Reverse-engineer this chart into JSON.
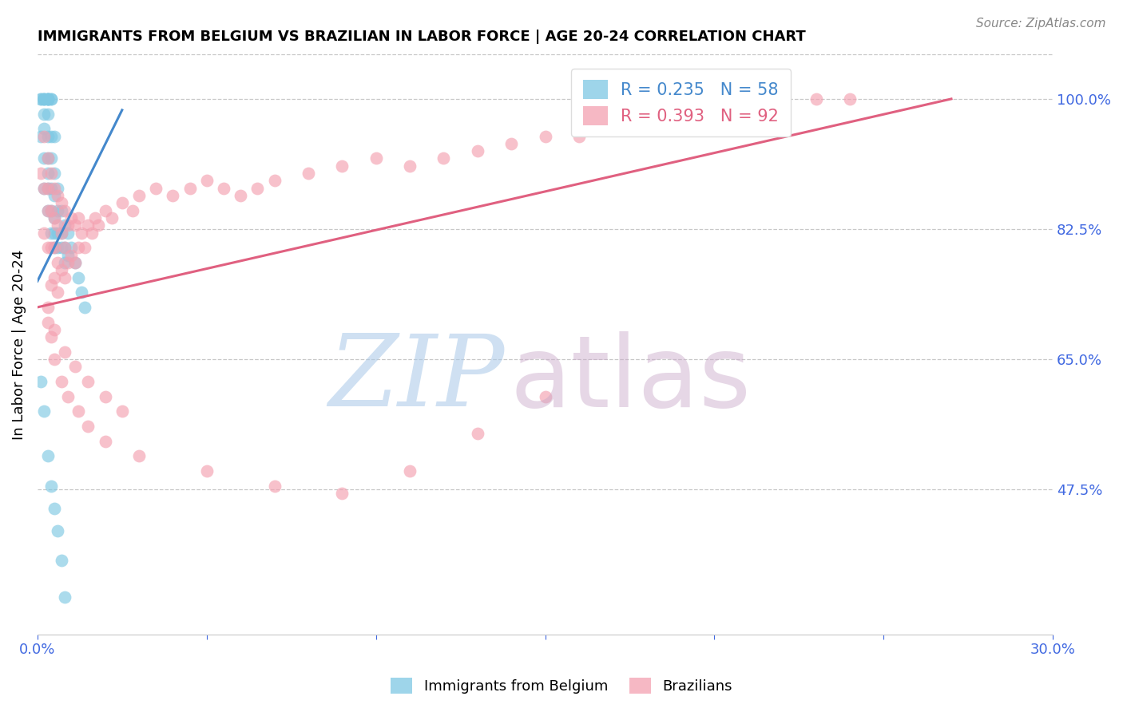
{
  "title": "IMMIGRANTS FROM BELGIUM VS BRAZILIAN IN LABOR FORCE | AGE 20-24 CORRELATION CHART",
  "source": "Source: ZipAtlas.com",
  "ylabel": "In Labor Force | Age 20-24",
  "xlim": [
    0.0,
    0.3
  ],
  "ylim": [
    0.28,
    1.06
  ],
  "xticks": [
    0.0,
    0.05,
    0.1,
    0.15,
    0.2,
    0.25,
    0.3
  ],
  "xticklabels": [
    "0.0%",
    "",
    "",
    "",
    "",
    "",
    "30.0%"
  ],
  "yticks_right": [
    0.475,
    0.65,
    0.825,
    1.0
  ],
  "ytick_labels_right": [
    "47.5%",
    "65.0%",
    "82.5%",
    "100.0%"
  ],
  "legend1_label": "R = 0.235   N = 58",
  "legend2_label": "R = 0.393   N = 92",
  "watermark_zip": "ZIP",
  "watermark_atlas": "atlas",
  "legend_bottom_1": "Immigrants from Belgium",
  "legend_bottom_2": "Brazilians",
  "color_belgium": "#7ec8e3",
  "color_brazil": "#f4a0b0",
  "color_belgium_line": "#4488cc",
  "color_brazil_line": "#e06080",
  "color_right_labels": "#4169E1",
  "color_axis_labels": "#4169E1",
  "belgium_x": [
    0.001,
    0.001,
    0.001,
    0.002,
    0.002,
    0.002,
    0.002,
    0.002,
    0.002,
    0.002,
    0.003,
    0.003,
    0.003,
    0.003,
    0.003,
    0.003,
    0.003,
    0.003,
    0.003,
    0.003,
    0.004,
    0.004,
    0.004,
    0.004,
    0.004,
    0.004,
    0.004,
    0.005,
    0.005,
    0.005,
    0.005,
    0.005,
    0.005,
    0.006,
    0.006,
    0.006,
    0.006,
    0.007,
    0.007,
    0.007,
    0.008,
    0.008,
    0.008,
    0.009,
    0.009,
    0.01,
    0.011,
    0.012,
    0.013,
    0.014,
    0.001,
    0.002,
    0.003,
    0.004,
    0.005,
    0.006,
    0.007,
    0.008
  ],
  "belgium_y": [
    1.0,
    1.0,
    0.95,
    1.0,
    1.0,
    1.0,
    0.98,
    0.96,
    0.92,
    0.88,
    1.0,
    1.0,
    1.0,
    1.0,
    0.98,
    0.95,
    0.92,
    0.9,
    0.88,
    0.85,
    1.0,
    1.0,
    0.95,
    0.92,
    0.88,
    0.85,
    0.82,
    0.95,
    0.9,
    0.87,
    0.84,
    0.82,
    0.8,
    0.88,
    0.85,
    0.82,
    0.8,
    0.85,
    0.82,
    0.8,
    0.83,
    0.8,
    0.78,
    0.82,
    0.79,
    0.8,
    0.78,
    0.76,
    0.74,
    0.72,
    0.62,
    0.58,
    0.52,
    0.48,
    0.45,
    0.42,
    0.38,
    0.33
  ],
  "brazil_x": [
    0.001,
    0.002,
    0.002,
    0.002,
    0.003,
    0.003,
    0.003,
    0.003,
    0.004,
    0.004,
    0.004,
    0.004,
    0.005,
    0.005,
    0.005,
    0.005,
    0.006,
    0.006,
    0.006,
    0.006,
    0.007,
    0.007,
    0.007,
    0.008,
    0.008,
    0.008,
    0.009,
    0.009,
    0.01,
    0.01,
    0.011,
    0.011,
    0.012,
    0.012,
    0.013,
    0.014,
    0.015,
    0.016,
    0.017,
    0.018,
    0.02,
    0.022,
    0.025,
    0.028,
    0.03,
    0.035,
    0.04,
    0.045,
    0.05,
    0.055,
    0.06,
    0.065,
    0.07,
    0.08,
    0.09,
    0.1,
    0.11,
    0.12,
    0.13,
    0.14,
    0.15,
    0.16,
    0.17,
    0.18,
    0.19,
    0.2,
    0.21,
    0.22,
    0.23,
    0.24,
    0.003,
    0.004,
    0.005,
    0.007,
    0.009,
    0.012,
    0.015,
    0.02,
    0.03,
    0.05,
    0.07,
    0.09,
    0.11,
    0.13,
    0.15,
    0.003,
    0.005,
    0.008,
    0.011,
    0.015,
    0.02,
    0.025
  ],
  "brazil_y": [
    0.9,
    0.95,
    0.88,
    0.82,
    0.92,
    0.88,
    0.85,
    0.8,
    0.9,
    0.85,
    0.8,
    0.75,
    0.88,
    0.84,
    0.8,
    0.76,
    0.87,
    0.83,
    0.78,
    0.74,
    0.86,
    0.82,
    0.77,
    0.85,
    0.8,
    0.76,
    0.83,
    0.78,
    0.84,
    0.79,
    0.83,
    0.78,
    0.84,
    0.8,
    0.82,
    0.8,
    0.83,
    0.82,
    0.84,
    0.83,
    0.85,
    0.84,
    0.86,
    0.85,
    0.87,
    0.88,
    0.87,
    0.88,
    0.89,
    0.88,
    0.87,
    0.88,
    0.89,
    0.9,
    0.91,
    0.92,
    0.91,
    0.92,
    0.93,
    0.94,
    0.95,
    0.95,
    0.96,
    0.97,
    0.97,
    0.98,
    0.99,
    1.0,
    1.0,
    1.0,
    0.7,
    0.68,
    0.65,
    0.62,
    0.6,
    0.58,
    0.56,
    0.54,
    0.52,
    0.5,
    0.48,
    0.47,
    0.5,
    0.55,
    0.6,
    0.72,
    0.69,
    0.66,
    0.64,
    0.62,
    0.6,
    0.58
  ],
  "bel_line_x": [
    0.0,
    0.025
  ],
  "bel_line_y": [
    0.755,
    0.985
  ],
  "bra_line_x": [
    0.0,
    0.27
  ],
  "bra_line_y": [
    0.72,
    1.0
  ]
}
